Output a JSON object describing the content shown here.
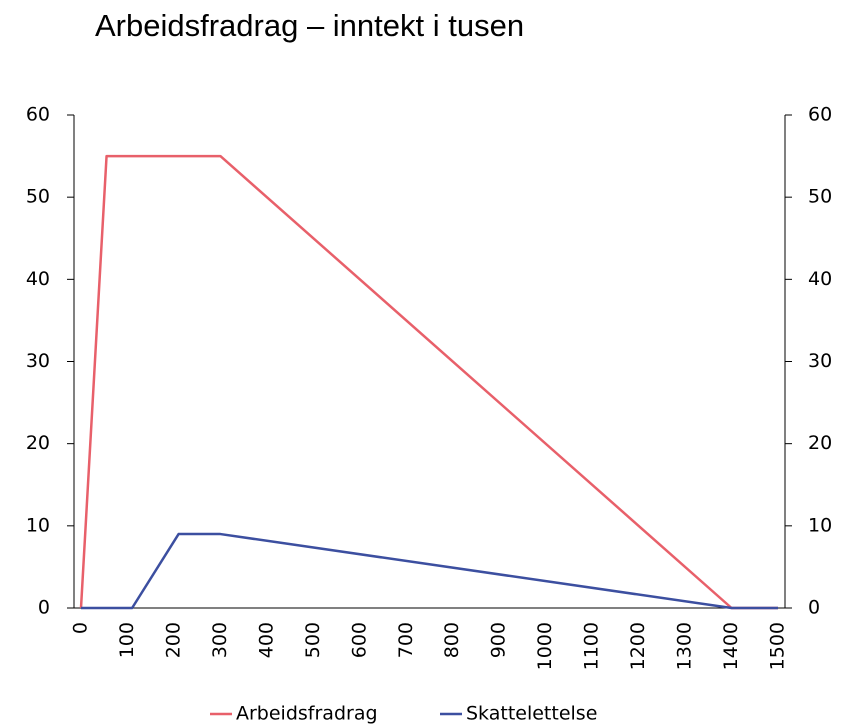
{
  "chart_data": {
    "type": "line",
    "title": "Arbeidsfradrag – inntekt i tusen",
    "series": [
      {
        "name": "Arbeidsfradrag",
        "color": "#e8606a",
        "x": [
          0,
          55,
          300,
          1400,
          1500
        ],
        "values": [
          0,
          55,
          55,
          0,
          0
        ]
      },
      {
        "name": "Skattelettelse",
        "color": "#3c4fa0",
        "x": [
          0,
          110,
          210,
          300,
          1400,
          1500
        ],
        "values": [
          0,
          0,
          9,
          9,
          0,
          0
        ]
      }
    ],
    "xlim": [
      0,
      1500
    ],
    "xticks": [
      0,
      100,
      200,
      300,
      400,
      500,
      600,
      700,
      800,
      900,
      1000,
      1100,
      1200,
      1300,
      1400,
      1500
    ],
    "ylim": [
      0,
      60
    ],
    "yticks": [
      0,
      10,
      20,
      30,
      40,
      50,
      60
    ],
    "y2lim": [
      0,
      60
    ],
    "y2ticks": [
      0,
      10,
      20,
      30,
      40,
      50,
      60
    ],
    "legend": "bottom"
  }
}
